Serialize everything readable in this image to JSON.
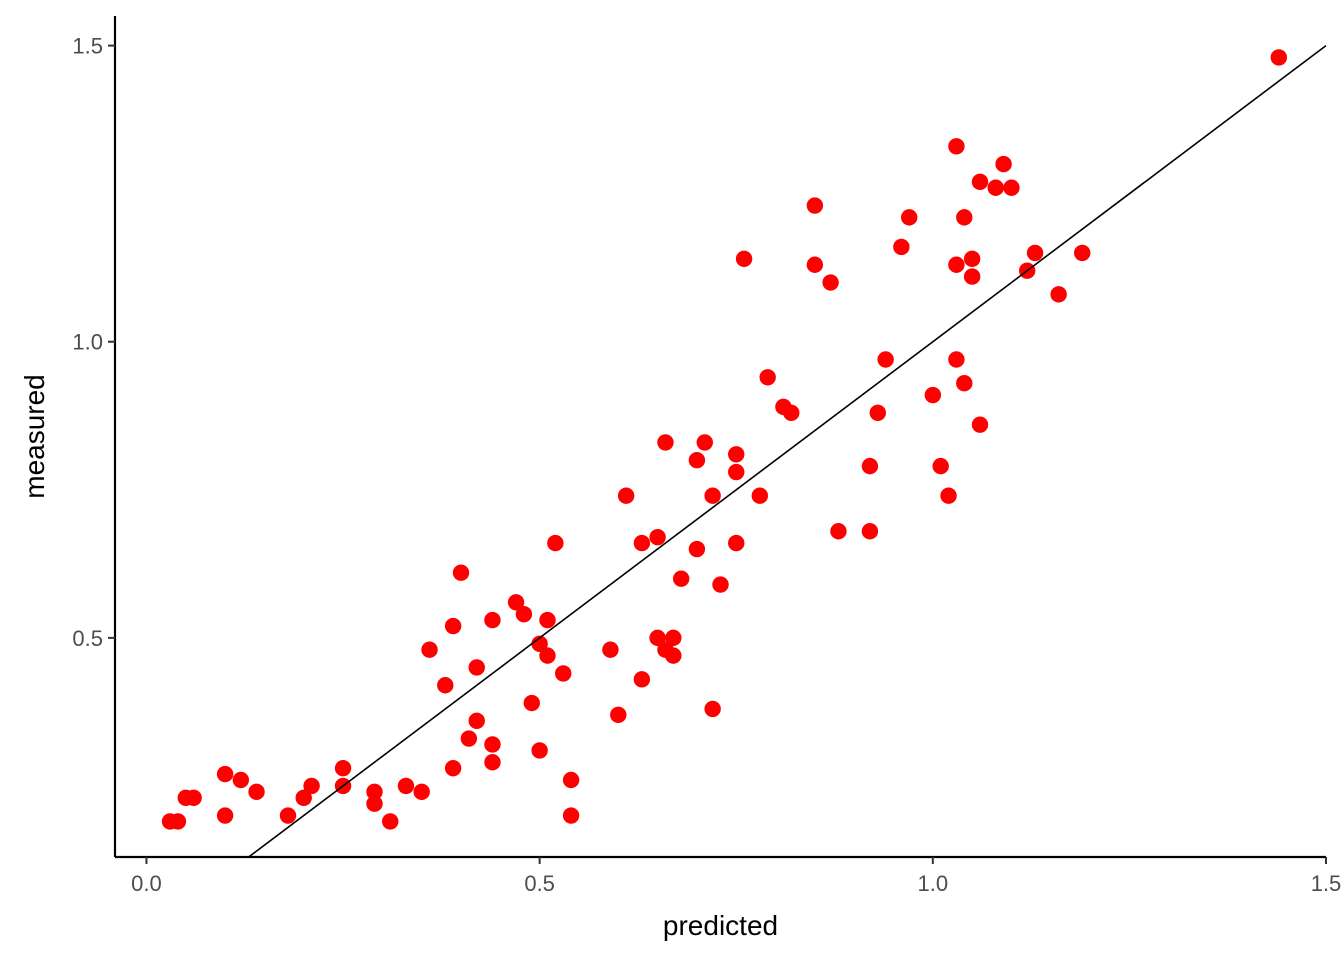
{
  "chart_data": {
    "type": "scatter",
    "title": "",
    "xlabel": "predicted",
    "ylabel": "measured",
    "xlim": [
      -0.04,
      1.5
    ],
    "ylim": [
      0.13,
      1.55
    ],
    "x_ticks": [
      0.0,
      0.5,
      1.0,
      1.5
    ],
    "x_tick_labels": [
      "0.0",
      "0.5",
      "1.0",
      "1.5"
    ],
    "y_ticks": [
      0.5,
      1.0,
      1.5
    ],
    "y_tick_labels": [
      "0.5",
      "1.0",
      "1.5"
    ],
    "grid": false,
    "legend": "none",
    "point_color": "#ff0000",
    "reference_line": {
      "slope": 1,
      "intercept": 0,
      "color": "#000000"
    },
    "series": [
      {
        "points": [
          [
            0.03,
            0.19
          ],
          [
            0.04,
            0.19
          ],
          [
            0.05,
            0.23
          ],
          [
            0.06,
            0.23
          ],
          [
            0.1,
            0.2
          ],
          [
            0.1,
            0.27
          ],
          [
            0.12,
            0.26
          ],
          [
            0.14,
            0.24
          ],
          [
            0.18,
            0.2
          ],
          [
            0.2,
            0.23
          ],
          [
            0.21,
            0.25
          ],
          [
            0.25,
            0.25
          ],
          [
            0.25,
            0.28
          ],
          [
            0.29,
            0.22
          ],
          [
            0.29,
            0.24
          ],
          [
            0.31,
            0.19
          ],
          [
            0.33,
            0.25
          ],
          [
            0.35,
            0.24
          ],
          [
            0.36,
            0.48
          ],
          [
            0.38,
            0.42
          ],
          [
            0.39,
            0.28
          ],
          [
            0.39,
            0.52
          ],
          [
            0.4,
            0.61
          ],
          [
            0.41,
            0.33
          ],
          [
            0.42,
            0.36
          ],
          [
            0.42,
            0.45
          ],
          [
            0.44,
            0.29
          ],
          [
            0.44,
            0.32
          ],
          [
            0.44,
            0.53
          ],
          [
            0.47,
            0.56
          ],
          [
            0.48,
            0.54
          ],
          [
            0.49,
            0.39
          ],
          [
            0.5,
            0.31
          ],
          [
            0.5,
            0.49
          ],
          [
            0.51,
            0.47
          ],
          [
            0.51,
            0.53
          ],
          [
            0.52,
            0.66
          ],
          [
            0.53,
            0.44
          ],
          [
            0.54,
            0.26
          ],
          [
            0.54,
            0.2
          ],
          [
            0.59,
            0.48
          ],
          [
            0.6,
            0.37
          ],
          [
            0.61,
            0.74
          ],
          [
            0.63,
            0.43
          ],
          [
            0.63,
            0.66
          ],
          [
            0.65,
            0.67
          ],
          [
            0.65,
            0.5
          ],
          [
            0.66,
            0.48
          ],
          [
            0.66,
            0.83
          ],
          [
            0.67,
            0.5
          ],
          [
            0.67,
            0.47
          ],
          [
            0.68,
            0.6
          ],
          [
            0.7,
            0.65
          ],
          [
            0.7,
            0.8
          ],
          [
            0.71,
            0.83
          ],
          [
            0.72,
            0.74
          ],
          [
            0.72,
            0.38
          ],
          [
            0.73,
            0.59
          ],
          [
            0.75,
            0.81
          ],
          [
            0.75,
            0.78
          ],
          [
            0.75,
            0.66
          ],
          [
            0.76,
            1.14
          ],
          [
            0.78,
            0.74
          ],
          [
            0.79,
            0.94
          ],
          [
            0.81,
            0.89
          ],
          [
            0.82,
            0.88
          ],
          [
            0.85,
            1.23
          ],
          [
            0.85,
            1.13
          ],
          [
            0.87,
            1.1
          ],
          [
            0.88,
            0.68
          ],
          [
            0.92,
            0.79
          ],
          [
            0.92,
            0.68
          ],
          [
            0.93,
            0.88
          ],
          [
            0.94,
            0.97
          ],
          [
            0.96,
            1.16
          ],
          [
            0.97,
            1.21
          ],
          [
            1.0,
            0.91
          ],
          [
            1.01,
            0.79
          ],
          [
            1.02,
            0.74
          ],
          [
            1.03,
            1.33
          ],
          [
            1.03,
            1.13
          ],
          [
            1.03,
            0.97
          ],
          [
            1.04,
            1.21
          ],
          [
            1.04,
            0.93
          ],
          [
            1.05,
            1.14
          ],
          [
            1.05,
            1.11
          ],
          [
            1.06,
            1.27
          ],
          [
            1.06,
            0.86
          ],
          [
            1.08,
            1.26
          ],
          [
            1.09,
            1.3
          ],
          [
            1.1,
            1.26
          ],
          [
            1.12,
            1.12
          ],
          [
            1.13,
            1.15
          ],
          [
            1.16,
            1.08
          ],
          [
            1.19,
            1.15
          ],
          [
            1.44,
            1.48
          ]
        ]
      }
    ]
  }
}
